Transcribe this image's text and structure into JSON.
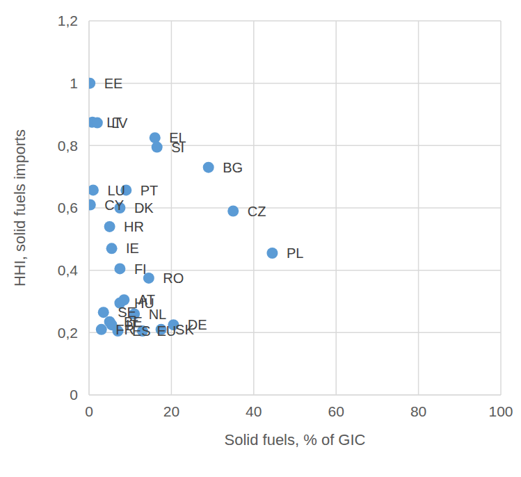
{
  "chart_data": {
    "type": "scatter",
    "x_label": "Solid fuels, % of GIC",
    "y_label": "HHI, solid fuels imports",
    "color": "#5b9bd5",
    "grid": true,
    "xlim": [
      0,
      100
    ],
    "xticks": [
      0,
      20,
      40,
      60,
      80,
      100
    ],
    "ylim": [
      0,
      1.2
    ],
    "yticks": [
      0,
      {
        "value": 0.2,
        "label": "0,2"
      },
      {
        "value": 0.4,
        "label": "0,4"
      },
      {
        "value": 0.6,
        "label": "0,6"
      },
      {
        "value": 0.8,
        "label": "0,8"
      },
      1,
      {
        "value": 1.2,
        "label": "1,2"
      }
    ],
    "labels": [
      "EE",
      "LT",
      "LV",
      "EL",
      "SI",
      "BG",
      "LU",
      "PT",
      "CY",
      "DK",
      "CZ",
      "HR",
      "IE",
      "PL",
      "FI",
      "RO",
      "AT",
      "HU",
      "SE",
      "NL",
      "BE",
      "IT",
      "FR",
      "ES",
      "EU",
      "SK",
      "DE"
    ],
    "x": [
      0.2,
      0.8,
      2,
      16,
      16.5,
      29,
      1,
      9,
      0.3,
      7.5,
      35,
      5,
      5.5,
      44.5,
      7.5,
      14.5,
      8.5,
      7.5,
      3.5,
      11,
      5,
      5.5,
      3,
      7,
      13,
      17.5,
      20.5
    ],
    "values": [
      1.0,
      0.875,
      0.873,
      0.825,
      0.795,
      0.73,
      0.657,
      0.657,
      0.61,
      0.6,
      0.59,
      0.54,
      0.47,
      0.455,
      0.405,
      0.375,
      0.305,
      0.295,
      0.265,
      0.26,
      0.235,
      0.225,
      0.21,
      0.205,
      0.205,
      0.21,
      0.225
    ]
  }
}
